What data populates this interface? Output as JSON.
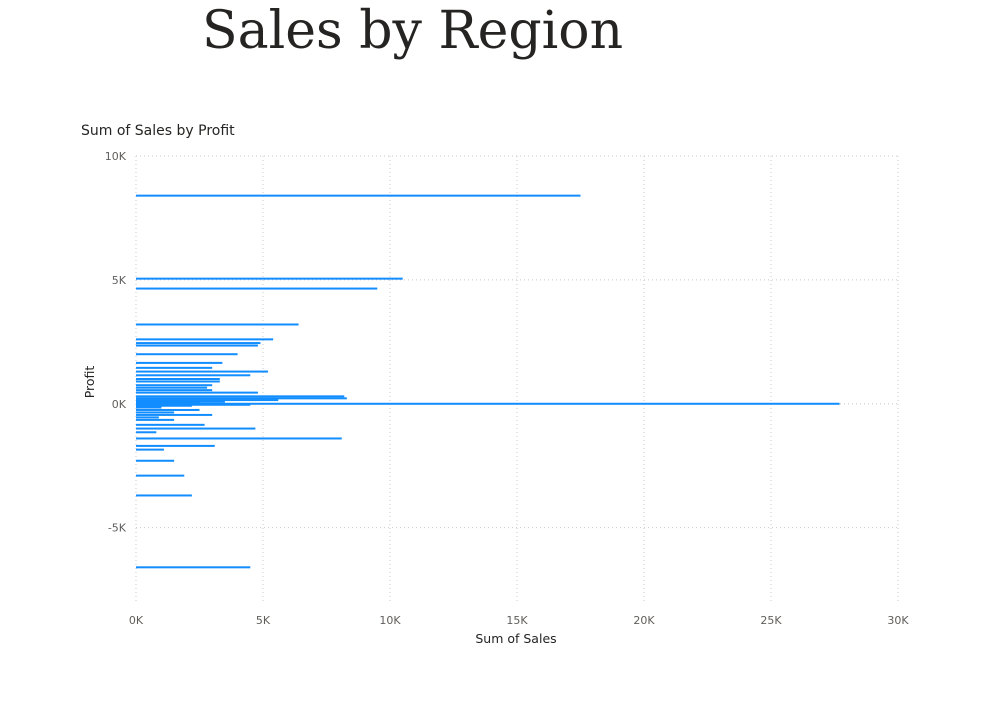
{
  "page": {
    "title": "Sales by Region"
  },
  "chart_data": {
    "type": "bar",
    "orientation": "horizontal",
    "title": "Sum of Sales by Profit",
    "xlabel": "Sum of Sales",
    "ylabel": "Profit",
    "xlim": [
      0,
      30000
    ],
    "ylim": [
      -8000,
      10000
    ],
    "x_ticks": [
      0,
      5000,
      10000,
      15000,
      20000,
      25000,
      30000
    ],
    "x_tick_labels": [
      "0K",
      "5K",
      "10K",
      "15K",
      "20K",
      "25K",
      "30K"
    ],
    "y_ticks": [
      10000,
      5000,
      0,
      -5000
    ],
    "y_tick_labels": [
      "10K",
      "5K",
      "0K",
      "-5K"
    ],
    "grid": true,
    "legend": "none",
    "color": "#118DFF",
    "series": [
      {
        "profit": [
          8400,
          5050,
          4650,
          3200,
          2600,
          2450,
          2350,
          2000,
          1650,
          1450,
          1300,
          1150,
          1000,
          900,
          750,
          650,
          550,
          450,
          300,
          220,
          150,
          80,
          40,
          0,
          -40,
          -80,
          -150,
          -250,
          -350,
          -450,
          -550,
          -650,
          -850,
          -1000,
          -1150,
          -1400,
          -1700,
          -1850,
          -2300,
          -2900,
          -3700,
          -6600
        ],
        "sales": [
          17500,
          10500,
          9500,
          6400,
          5400,
          4900,
          4800,
          4000,
          3400,
          3000,
          5200,
          4500,
          3300,
          3300,
          3000,
          2800,
          3000,
          4800,
          8200,
          8300,
          5600,
          3500,
          2500,
          27700,
          4500,
          2200,
          1000,
          2500,
          1500,
          3000,
          900,
          1500,
          2700,
          4700,
          800,
          8100,
          3100,
          1100,
          1500,
          1900,
          2200,
          4500
        ]
      }
    ]
  }
}
